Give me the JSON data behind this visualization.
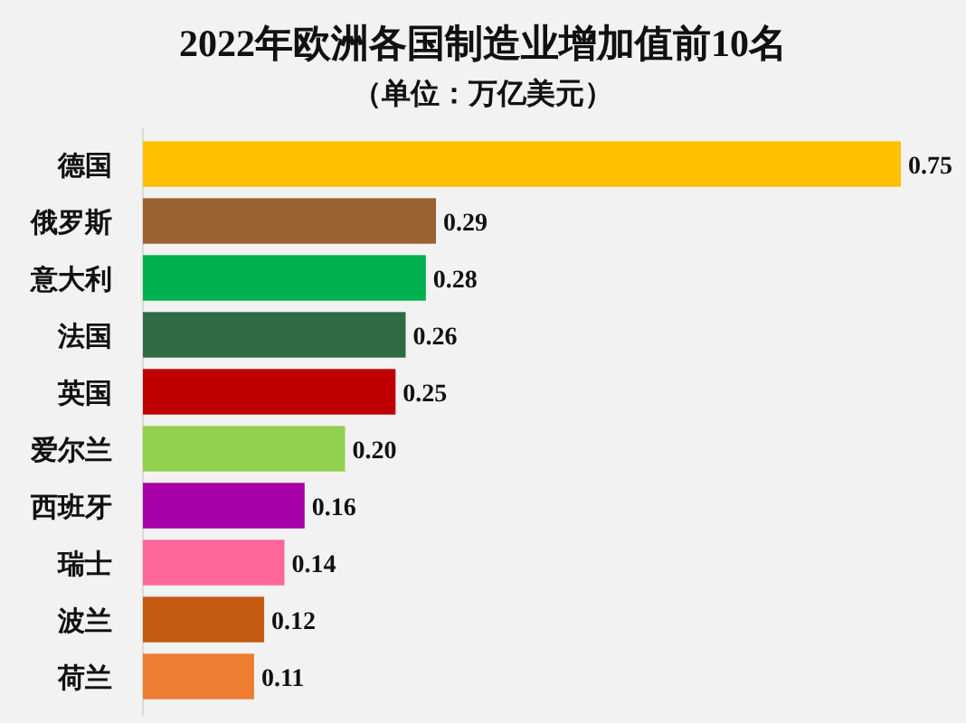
{
  "chart_data": {
    "type": "bar",
    "orientation": "horizontal",
    "title": "2022年欧洲各国制造业增加值前10名",
    "subtitle": "（单位：万亿美元）",
    "categories": [
      "德国",
      "俄罗斯",
      "意大利",
      "法国",
      "英国",
      "爱尔兰",
      "西班牙",
      "瑞士",
      "波兰",
      "荷兰"
    ],
    "values": [
      0.75,
      0.29,
      0.28,
      0.26,
      0.25,
      0.2,
      0.16,
      0.14,
      0.12,
      0.11
    ],
    "value_labels": [
      "0.75",
      "0.29",
      "0.28",
      "0.26",
      "0.25",
      "0.20",
      "0.16",
      "0.14",
      "0.12",
      "0.11"
    ],
    "colors": [
      "#ffc000",
      "#9a6232",
      "#00b050",
      "#2e6b45",
      "#c00000",
      "#92d050",
      "#a800a8",
      "#ff6699",
      "#c55a11",
      "#ed7d31"
    ],
    "tick_labels": "y"
  }
}
